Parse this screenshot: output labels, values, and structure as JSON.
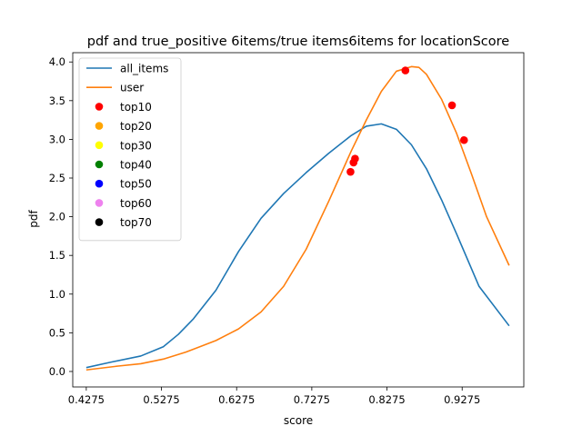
{
  "chart_data": {
    "type": "line",
    "title": "pdf and true_positive 6items/true items6items for locationScore",
    "xlabel": "score",
    "ylabel": "pdf",
    "xlim": [
      0.4095,
      1.0095
    ],
    "ylim": [
      -0.2,
      4.12
    ],
    "xticks": [
      0.4275,
      0.5275,
      0.6275,
      0.7275,
      0.8275,
      0.9275
    ],
    "xtick_labels": [
      "0.4275",
      "0.5275",
      "0.6275",
      "0.7275",
      "0.8275",
      "0.9275"
    ],
    "yticks": [
      0.0,
      0.5,
      1.0,
      1.5,
      2.0,
      2.5,
      3.0,
      3.5,
      4.0
    ],
    "ytick_labels": [
      "0.0",
      "0.5",
      "1.0",
      "1.5",
      "2.0",
      "2.5",
      "3.0",
      "3.5",
      "4.0"
    ],
    "legend_position": "top-left",
    "series": [
      {
        "name": "all_items",
        "color": "#1f77b4",
        "x": [
          0.4275,
          0.46,
          0.5,
          0.53,
          0.55,
          0.57,
          0.6,
          0.63,
          0.66,
          0.69,
          0.72,
          0.75,
          0.78,
          0.8,
          0.82,
          0.84,
          0.86,
          0.88,
          0.9,
          0.92,
          0.95,
          0.99
        ],
        "y": [
          0.05,
          0.12,
          0.2,
          0.32,
          0.48,
          0.68,
          1.05,
          1.55,
          1.98,
          2.3,
          2.57,
          2.82,
          3.05,
          3.17,
          3.2,
          3.13,
          2.93,
          2.62,
          2.22,
          1.78,
          1.1,
          0.59
        ]
      },
      {
        "name": "user",
        "color": "#ff7f0e",
        "x": [
          0.4275,
          0.47,
          0.5,
          0.53,
          0.56,
          0.6,
          0.63,
          0.66,
          0.69,
          0.72,
          0.75,
          0.78,
          0.8,
          0.82,
          0.84,
          0.86,
          0.87,
          0.88,
          0.9,
          0.92,
          0.94,
          0.96,
          0.99
        ],
        "y": [
          0.02,
          0.07,
          0.1,
          0.16,
          0.25,
          0.4,
          0.55,
          0.77,
          1.1,
          1.58,
          2.2,
          2.85,
          3.25,
          3.62,
          3.88,
          3.94,
          3.93,
          3.84,
          3.52,
          3.08,
          2.55,
          2.0,
          1.37
        ]
      }
    ],
    "scatter": [
      {
        "name": "top10",
        "color": "#ff0000",
        "x": [
          0.779,
          0.783,
          0.785,
          0.852,
          0.914,
          0.93
        ],
        "y": [
          2.58,
          2.7,
          2.75,
          3.89,
          3.44,
          2.99
        ]
      },
      {
        "name": "top20",
        "color": "#ffa500",
        "x": [],
        "y": []
      },
      {
        "name": "top30",
        "color": "#ffff00",
        "x": [],
        "y": []
      },
      {
        "name": "top40",
        "color": "#008000",
        "x": [],
        "y": []
      },
      {
        "name": "top50",
        "color": "#0000ff",
        "x": [],
        "y": []
      },
      {
        "name": "top60",
        "color": "#ee82ee",
        "x": [],
        "y": []
      },
      {
        "name": "top70",
        "color": "#000000",
        "x": [],
        "y": []
      }
    ]
  }
}
